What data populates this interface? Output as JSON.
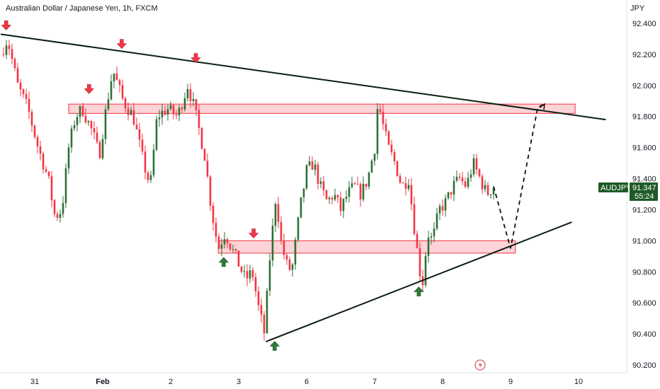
{
  "chart_data": {
    "type": "candlestick",
    "title": "Australian Dollar / Japanese Yen, 1h, FXCM",
    "currency": "JPY",
    "y_ticks": [
      "92.400",
      "92.200",
      "92.000",
      "91.800",
      "91.600",
      "91.400",
      "91.200",
      "91.000",
      "90.800",
      "90.600",
      "90.400",
      "90.200"
    ],
    "ylim": [
      90.2,
      92.4
    ],
    "x_ticks": [
      {
        "label": "31",
        "day": 0.5,
        "bold": false
      },
      {
        "label": "Feb",
        "day": 1.5,
        "bold": true
      },
      {
        "label": "2",
        "day": 2.5,
        "bold": false
      },
      {
        "label": "3",
        "day": 3.5,
        "bold": false
      },
      {
        "label": "6",
        "day": 4.5,
        "bold": false
      },
      {
        "label": "7",
        "day": 5.5,
        "bold": false
      },
      {
        "label": "8",
        "day": 6.5,
        "bold": false
      },
      {
        "label": "9",
        "day": 7.5,
        "bold": false
      },
      {
        "label": "10",
        "day": 8.5,
        "bold": false
      }
    ],
    "symbol_label": "AUDJPY",
    "last_price": "91.347",
    "countdown": "55:24",
    "up_color": "#2f6f37",
    "down_color": "#f23645",
    "price_path": [
      {
        "day": 0.0,
        "price": 92.2
      },
      {
        "day": 0.1,
        "price": 92.3
      },
      {
        "day": 0.25,
        "price": 92.0
      },
      {
        "day": 0.4,
        "price": 91.85
      },
      {
        "day": 0.55,
        "price": 91.6
      },
      {
        "day": 0.7,
        "price": 91.4
      },
      {
        "day": 0.8,
        "price": 91.15
      },
      {
        "day": 0.9,
        "price": 91.2
      },
      {
        "day": 1.0,
        "price": 91.6
      },
      {
        "day": 1.1,
        "price": 91.8
      },
      {
        "day": 1.2,
        "price": 91.85
      },
      {
        "day": 1.35,
        "price": 91.7
      },
      {
        "day": 1.45,
        "price": 91.55
      },
      {
        "day": 1.55,
        "price": 91.85
      },
      {
        "day": 1.65,
        "price": 92.1
      },
      {
        "day": 1.8,
        "price": 91.9
      },
      {
        "day": 1.95,
        "price": 91.8
      },
      {
        "day": 2.1,
        "price": 91.5
      },
      {
        "day": 2.2,
        "price": 91.35
      },
      {
        "day": 2.3,
        "price": 91.8
      },
      {
        "day": 2.45,
        "price": 91.85
      },
      {
        "day": 2.6,
        "price": 91.8
      },
      {
        "day": 2.75,
        "price": 92.0
      },
      {
        "day": 2.85,
        "price": 91.85
      },
      {
        "day": 3.0,
        "price": 91.55
      },
      {
        "day": 3.1,
        "price": 91.2
      },
      {
        "day": 3.2,
        "price": 90.95
      },
      {
        "day": 3.3,
        "price": 91.05
      },
      {
        "day": 3.4,
        "price": 90.95
      },
      {
        "day": 3.5,
        "price": 90.85
      },
      {
        "day": 3.6,
        "price": 90.75
      },
      {
        "day": 3.7,
        "price": 90.8
      },
      {
        "day": 3.8,
        "price": 90.55
      },
      {
        "day": 3.88,
        "price": 90.4
      },
      {
        "day": 3.95,
        "price": 90.85
      },
      {
        "day": 4.05,
        "price": 91.3
      },
      {
        "day": 4.12,
        "price": 91.0
      },
      {
        "day": 4.2,
        "price": 90.85
      },
      {
        "day": 4.28,
        "price": 90.8
      },
      {
        "day": 4.4,
        "price": 91.2
      },
      {
        "day": 4.5,
        "price": 91.45
      },
      {
        "day": 4.6,
        "price": 91.5
      },
      {
        "day": 4.7,
        "price": 91.35
      },
      {
        "day": 4.8,
        "price": 91.25
      },
      {
        "day": 4.9,
        "price": 91.3
      },
      {
        "day": 5.0,
        "price": 91.2
      },
      {
        "day": 5.1,
        "price": 91.3
      },
      {
        "day": 5.2,
        "price": 91.35
      },
      {
        "day": 5.3,
        "price": 91.3
      },
      {
        "day": 5.4,
        "price": 91.4
      },
      {
        "day": 5.5,
        "price": 91.6
      },
      {
        "day": 5.55,
        "price": 91.9
      },
      {
        "day": 5.62,
        "price": 91.75
      },
      {
        "day": 5.7,
        "price": 91.6
      },
      {
        "day": 5.8,
        "price": 91.5
      },
      {
        "day": 5.9,
        "price": 91.35
      },
      {
        "day": 6.0,
        "price": 91.4
      },
      {
        "day": 6.08,
        "price": 91.1
      },
      {
        "day": 6.15,
        "price": 90.85
      },
      {
        "day": 6.2,
        "price": 90.7
      },
      {
        "day": 6.28,
        "price": 91.05
      },
      {
        "day": 6.35,
        "price": 91.0
      },
      {
        "day": 6.45,
        "price": 91.2
      },
      {
        "day": 6.55,
        "price": 91.25
      },
      {
        "day": 6.65,
        "price": 91.35
      },
      {
        "day": 6.75,
        "price": 91.4
      },
      {
        "day": 6.85,
        "price": 91.35
      },
      {
        "day": 6.95,
        "price": 91.5
      },
      {
        "day": 7.05,
        "price": 91.4
      },
      {
        "day": 7.15,
        "price": 91.3
      },
      {
        "day": 7.25,
        "price": 91.35
      }
    ],
    "resistance_trendline": [
      {
        "day": 0.0,
        "price": 92.33
      },
      {
        "day": 8.9,
        "price": 91.78
      }
    ],
    "support_trendline": [
      {
        "day": 3.9,
        "price": 90.35
      },
      {
        "day": 8.4,
        "price": 91.12
      }
    ],
    "zones": [
      {
        "day_from": 1.0,
        "day_to": 8.45,
        "price_low": 91.82,
        "price_high": 91.88
      },
      {
        "day_from": 3.2,
        "day_to": 7.57,
        "price_low": 90.92,
        "price_high": 91.0
      }
    ],
    "projection_path": [
      {
        "day": 7.25,
        "price": 91.35
      },
      {
        "day": 7.5,
        "price": 90.95
      },
      {
        "day": 7.9,
        "price": 91.86
      },
      {
        "day": 8.0,
        "price": 91.88
      }
    ],
    "down_arrows": [
      {
        "day": 0.08,
        "price": 92.38
      },
      {
        "day": 1.3,
        "price": 91.97
      },
      {
        "day": 1.78,
        "price": 92.26
      },
      {
        "day": 2.87,
        "price": 92.17
      },
      {
        "day": 3.72,
        "price": 91.04
      }
    ],
    "up_arrows": [
      {
        "day": 3.28,
        "price": 90.87
      },
      {
        "day": 4.03,
        "price": 90.33
      },
      {
        "day": 6.15,
        "price": 90.68
      }
    ]
  }
}
